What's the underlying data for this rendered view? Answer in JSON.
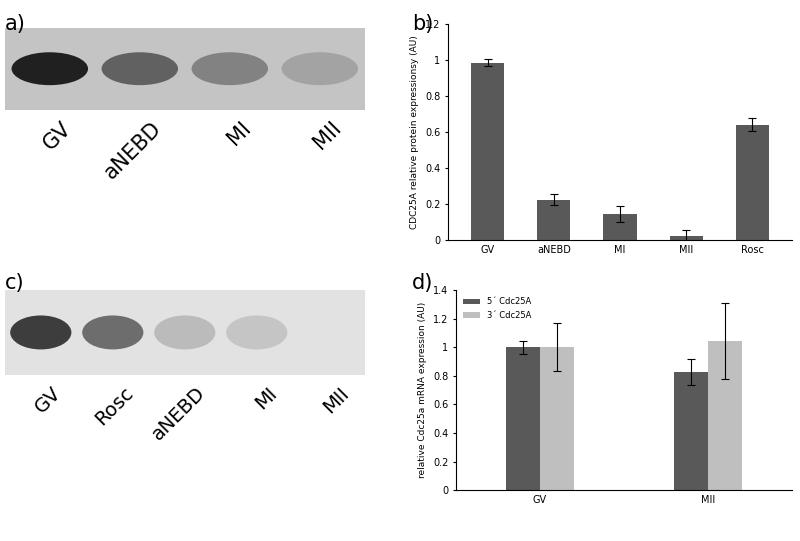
{
  "chart_data": [
    {
      "type": "bar",
      "title": "b)",
      "categories": [
        "GV",
        "aNEBD",
        "MI",
        "MII",
        "Rosc"
      ],
      "values": [
        0.985,
        0.225,
        0.145,
        0.025,
        0.64
      ],
      "errors": [
        0.02,
        0.03,
        0.045,
        0.03,
        0.035
      ],
      "color": "#595959",
      "y_label": "CDC25A relative protein expressionsy (AU)",
      "ylim": [
        0,
        1.2
      ],
      "yticks": [
        0,
        0.2,
        0.4,
        0.6,
        0.8,
        1,
        1.2
      ]
    },
    {
      "type": "bar",
      "title": "d)",
      "categories": [
        "GV",
        "MII"
      ],
      "series": [
        {
          "name": "5´ Cdc25A",
          "color": "#595959",
          "values": [
            1.0,
            0.825
          ],
          "errors": [
            0.045,
            0.09
          ]
        },
        {
          "name": "3´ Cdc25A",
          "color": "#bfbfbf",
          "values": [
            1.0,
            1.045
          ],
          "errors": [
            0.17,
            0.265
          ]
        }
      ],
      "y_label": "relative Cdc25a mRNA expression (AU)",
      "ylim": [
        0,
        1.4
      ],
      "yticks": [
        0,
        0.2,
        0.4,
        0.6,
        0.8,
        1,
        1.2,
        1.4
      ],
      "legend": "upper left"
    }
  ],
  "blots": [
    {
      "title": "a)",
      "lanes": [
        "GV",
        "aNEBD",
        "MI",
        "MII"
      ],
      "band_intensity": [
        1.0,
        0.6,
        0.4,
        0.2
      ]
    },
    {
      "title": "c)",
      "lanes": [
        "GV",
        "Rosc",
        "aNEBD",
        "MI",
        "MII"
      ],
      "band_intensity": [
        0.85,
        0.6,
        0.2,
        0.15,
        0.0
      ]
    }
  ]
}
